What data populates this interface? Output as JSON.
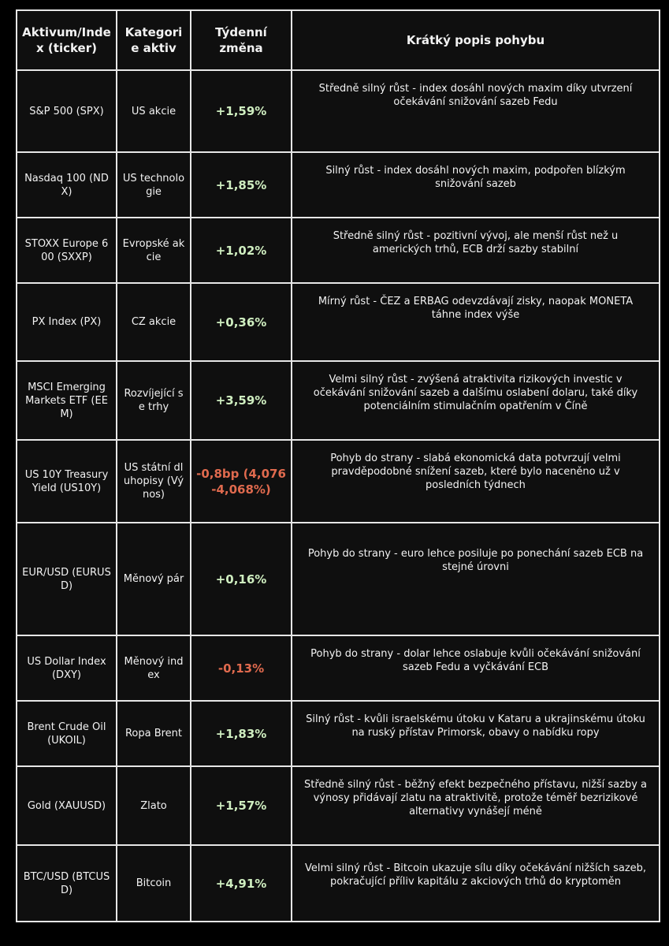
{
  "headers": {
    "asset": "Aktivum/Index (ticker)",
    "category": "Kategorie aktiv",
    "change": "Týdenní změna",
    "description": "Krátký popis pohybu"
  },
  "colors": {
    "positive": "#cfeec0",
    "negative": "#e06a4e",
    "background": "#0f0f0f",
    "border": "#e6e6e6"
  },
  "rows": [
    {
      "asset": "S&P 500 (SPX)",
      "category": "US akcie",
      "change": "+1,59%",
      "direction": "positive",
      "description": "Středně silný růst - index dosáhl nových maxim díky utvrzení očekávání snižování sazeb Fedu"
    },
    {
      "asset": "Nasdaq 100 (NDX)",
      "category": "US technologie",
      "change": "+1,85%",
      "direction": "positive",
      "description": "Silný růst - index dosáhl nových maxim, podpořen blízkým snižování sazeb"
    },
    {
      "asset": "STOXX Europe 600 (SXXP)",
      "category": "Evropské akcie",
      "change": "+1,02%",
      "direction": "positive",
      "description": "Středně silný růst - pozitivní vývoj, ale menší růst než u amerických trhů, ECB drží sazby stabilní"
    },
    {
      "asset": "PX Index (PX)",
      "category": "CZ akcie",
      "change": "+0,36%",
      "direction": "positive",
      "description": "Mírný růst - ČEZ a ERBAG odevzdávají zisky, naopak MONETA táhne index výše"
    },
    {
      "asset": "MSCI Emerging Markets ETF (EEM)",
      "category": "Rozvíjející se trhy",
      "change": "+3,59%",
      "direction": "positive",
      "description": "Velmi silný růst - zvýšená atraktivita rizikových investic v očekávání snižování sazeb a dalšímu oslabení dolaru, také díky potenciálním stimulačním opatřením v Číně"
    },
    {
      "asset": "US 10Y Treasury Yield (US10Y)",
      "category": "US státní dluhopisy (Výnos)",
      "change": "-0,8bp (4,076-4,068%)",
      "direction": "negative",
      "description": "Pohyb do strany - slabá ekonomická data potvrzují velmi pravděpodobné snížení sazeb, které bylo naceněno už v posledních týdnech"
    },
    {
      "asset": "EUR/USD (EURUSD)",
      "category": "Měnový pár",
      "change": "+0,16%",
      "direction": "positive",
      "description": "Pohyb do strany - euro lehce posiluje po ponechání sazeb ECB na stejné úrovni"
    },
    {
      "asset": "US Dollar Index (DXY)",
      "category": "Měnový index",
      "change": "-0,13%",
      "direction": "negative",
      "description": "Pohyb do strany - dolar lehce oslabuje kvůli očekávání snižování sazeb Fedu a vyčkávání ECB"
    },
    {
      "asset": "Brent Crude Oil (UKOIL)",
      "category": "Ropa Brent",
      "change": "+1,83%",
      "direction": "positive",
      "description": "Silný růst - kvůli israelskému útoku v Kataru a ukrajinskému útoku na ruský přístav Primorsk, obavy o nabídku ropy"
    },
    {
      "asset": "Gold (XAUUSD)",
      "category": "Zlato",
      "change": "+1,57%",
      "direction": "positive",
      "description": "Středně silný růst - běžný efekt bezpečného přístavu, nižší sazby a výnosy přidávají zlatu na atraktivitě, protože téměř bezrizikové alternativy vynášejí méně"
    },
    {
      "asset": "BTC/USD (BTCUSD)",
      "category": "Bitcoin",
      "change": "+4,91%",
      "direction": "positive",
      "description": "Velmi silný růst - Bitcoin ukazuje sílu díky očekávání nižších sazeb, pokračující příliv kapitálu z akciových trhů do kryptoměn"
    }
  ]
}
